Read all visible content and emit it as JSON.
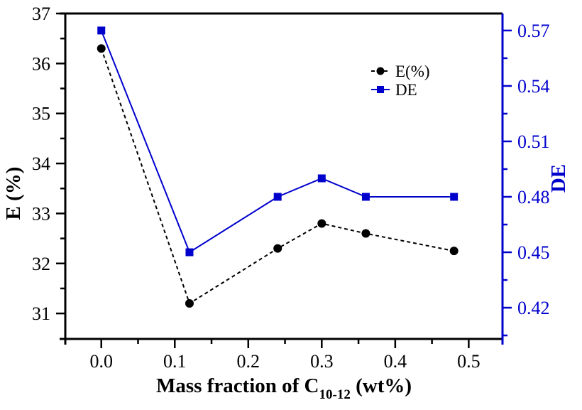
{
  "chart_data": {
    "type": "line",
    "x": [
      0.0,
      0.12,
      0.24,
      0.3,
      0.36,
      0.48
    ],
    "series": [
      {
        "name": "E(%)",
        "axis": "left",
        "color": "#000000",
        "marker": "circle",
        "line_style": "dashed",
        "values": [
          36.3,
          31.2,
          32.3,
          32.8,
          32.6,
          32.25
        ]
      },
      {
        "name": "DE",
        "axis": "right",
        "color": "#0000CD",
        "marker": "square",
        "line_style": "solid",
        "values": [
          0.57,
          0.45,
          0.48,
          0.49,
          0.48,
          0.48
        ]
      }
    ],
    "xlabel": "Mass fraction of C10-12 (wt%)",
    "xlabel_segments": [
      {
        "text": "Mass fraction of C",
        "sub": false
      },
      {
        "text": "10-12",
        "sub": true
      },
      {
        "text": " (wt%)",
        "sub": false
      }
    ],
    "ylabel_left": "E (%)",
    "ylabel_right": "DE",
    "xlim": [
      -0.049,
      0.546
    ],
    "ylim_left": [
      30.49,
      37.0
    ],
    "ylim_right": [
      0.4031,
      0.5792
    ],
    "x_ticks": {
      "values": [
        0.0,
        0.1,
        0.2,
        0.3,
        0.4,
        0.5
      ],
      "labels": [
        "0.0",
        "0.1",
        "0.2",
        "0.3",
        "0.4",
        "0.5"
      ],
      "minor": [
        0.05,
        0.15,
        0.25,
        0.35,
        0.45
      ]
    },
    "y_left_ticks": {
      "values": [
        31,
        32,
        33,
        34,
        35,
        36,
        37
      ],
      "labels": [
        "31",
        "32",
        "33",
        "34",
        "35",
        "36",
        "37"
      ],
      "minor": [
        31.5,
        32.5,
        33.5,
        34.5,
        35.5,
        36.5
      ]
    },
    "y_right_ticks": {
      "values": [
        0.42,
        0.45,
        0.48,
        0.51,
        0.54,
        0.57
      ],
      "labels": [
        "0.42",
        "0.45",
        "0.48",
        "0.51",
        "0.54",
        "0.57"
      ],
      "minor": [
        0.405,
        0.435,
        0.465,
        0.495,
        0.525,
        0.555
      ]
    },
    "legend": {
      "position": "upper-right",
      "entries": [
        {
          "label": "E(%)"
        },
        {
          "label": "DE"
        }
      ]
    },
    "grid": false,
    "colors": {
      "left_axis": "#000000",
      "right_axis": "#0000CD",
      "background": "#ffffff"
    }
  }
}
